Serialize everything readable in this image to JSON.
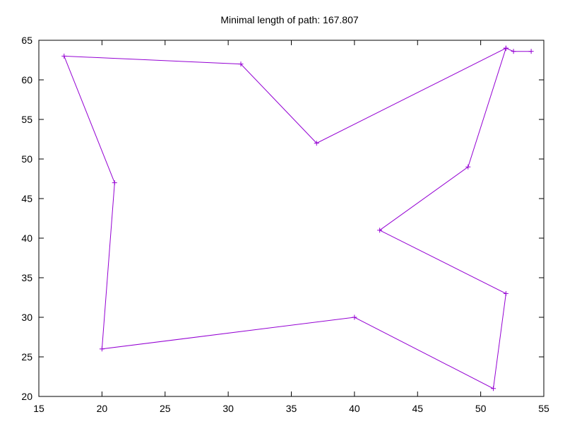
{
  "chart_data": {
    "type": "line",
    "title": "Minimal length of path: 167.807",
    "xlabel": "",
    "ylabel": "",
    "xlim": [
      15,
      55
    ],
    "ylim": [
      20,
      65
    ],
    "xticks": [
      15,
      20,
      25,
      30,
      35,
      40,
      45,
      50,
      55
    ],
    "yticks": [
      20,
      25,
      30,
      35,
      40,
      45,
      50,
      55,
      60,
      65
    ],
    "grid": false,
    "legend": "none",
    "series": [
      {
        "color": "#9400d3",
        "marker": "plus",
        "x": [
          54,
          52.6,
          52,
          37,
          31,
          17,
          21,
          20,
          40,
          51,
          52,
          42,
          49,
          52
        ],
        "y": [
          63.6,
          63.6,
          64,
          52,
          62,
          63,
          47,
          26,
          30,
          21,
          33,
          41,
          49,
          64
        ]
      }
    ]
  }
}
